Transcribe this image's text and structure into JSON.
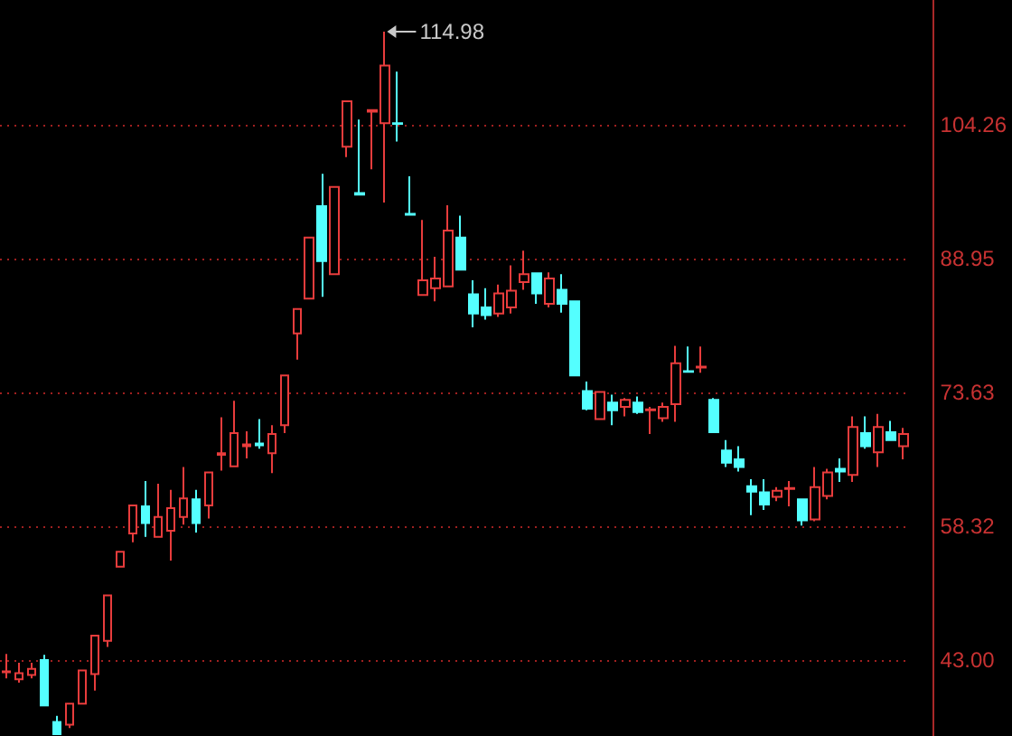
{
  "chart_data": {
    "type": "candlestick",
    "categories": [
      null,
      null,
      null,
      null,
      null,
      null,
      null,
      null,
      null,
      null,
      null,
      null,
      null,
      null,
      null,
      null,
      null,
      null,
      null,
      null,
      null,
      null,
      null,
      null,
      null,
      null,
      null,
      null,
      null,
      null,
      null,
      null,
      null,
      null,
      null,
      null,
      null,
      null,
      null,
      null,
      null,
      null,
      null,
      null,
      null,
      null,
      null,
      null,
      null,
      null,
      null,
      null,
      null,
      null,
      null,
      null,
      null,
      null,
      null,
      null,
      null,
      null,
      null,
      null,
      null,
      null,
      null,
      null,
      null,
      null,
      null,
      null
    ],
    "ohlc": [
      [
        41.6,
        43.7,
        40.9,
        41.7
      ],
      [
        40.8,
        42.7,
        40.4,
        41.5
      ],
      [
        41.3,
        42.7,
        40.9,
        42.0
      ],
      [
        43.0,
        43.6,
        37.8,
        37.8
      ],
      [
        35.9,
        36.6,
        34.4,
        34.5
      ],
      [
        35.6,
        38.0,
        35.2,
        38.0
      ],
      [
        38.0,
        41.8,
        38.0,
        41.8
      ],
      [
        41.4,
        45.8,
        39.5,
        45.8
      ],
      [
        45.2,
        50.4,
        44.5,
        50.4
      ],
      [
        53.7,
        55.4,
        53.7,
        55.4
      ],
      [
        57.5,
        60.7,
        56.5,
        60.7
      ],
      [
        60.6,
        63.5,
        57.1,
        58.7
      ],
      [
        57.1,
        63.2,
        57.1,
        59.4
      ],
      [
        57.8,
        62.5,
        54.4,
        60.4
      ],
      [
        59.4,
        65.1,
        58.5,
        61.5
      ],
      [
        61.4,
        62.5,
        57.6,
        58.7
      ],
      [
        60.7,
        64.5,
        59.2,
        64.5
      ],
      [
        66.5,
        70.8,
        64.7,
        66.7
      ],
      [
        65.2,
        72.7,
        65.1,
        69.0
      ],
      [
        67.5,
        69.2,
        66.1,
        67.7
      ],
      [
        67.8,
        70.6,
        67.2,
        67.6
      ],
      [
        66.7,
        69.9,
        64.4,
        68.9
      ],
      [
        69.9,
        75.6,
        69.0,
        75.6
      ],
      [
        80.4,
        83.2,
        77.4,
        83.2
      ],
      [
        84.4,
        91.4,
        84.3,
        91.4
      ],
      [
        95.0,
        98.7,
        84.6,
        88.7
      ],
      [
        87.2,
        97.2,
        87.2,
        97.2
      ],
      [
        101.8,
        107.0,
        100.6,
        107.0
      ],
      [
        96.5,
        104.9,
        96.3,
        96.3
      ],
      [
        105.8,
        106.1,
        99.2,
        106.0
      ],
      [
        104.5,
        114.98,
        95.4,
        111.1
      ],
      [
        104.5,
        110.4,
        102.4,
        104.4
      ],
      [
        94.1,
        98.4,
        93.9,
        94.0
      ],
      [
        84.8,
        93.4,
        84.8,
        86.5
      ],
      [
        85.6,
        89.2,
        84.1,
        86.7
      ],
      [
        85.8,
        95.1,
        85.8,
        92.2
      ],
      [
        91.4,
        93.9,
        87.7,
        87.7
      ],
      [
        84.9,
        86.5,
        81.1,
        82.7
      ],
      [
        83.4,
        85.6,
        82.0,
        82.5
      ],
      [
        82.7,
        86.0,
        82.3,
        85.0
      ],
      [
        83.4,
        88.2,
        82.7,
        85.3
      ],
      [
        86.3,
        89.9,
        85.4,
        87.2
      ],
      [
        87.3,
        87.3,
        83.8,
        85.0
      ],
      [
        83.8,
        87.4,
        83.4,
        86.7
      ],
      [
        85.4,
        87.2,
        82.8,
        83.8
      ],
      [
        84.1,
        84.1,
        75.6,
        75.6
      ],
      [
        73.8,
        74.9,
        71.6,
        71.8
      ],
      [
        70.6,
        73.7,
        70.6,
        73.7
      ],
      [
        72.5,
        73.4,
        69.9,
        71.6
      ],
      [
        72.0,
        73.0,
        70.9,
        72.8
      ],
      [
        72.5,
        73.2,
        71.2,
        71.4
      ],
      [
        71.6,
        72.0,
        68.9,
        71.7
      ],
      [
        70.7,
        72.5,
        70.3,
        72.0
      ],
      [
        72.3,
        79.0,
        70.3,
        77.0
      ],
      [
        76.1,
        78.9,
        75.9,
        76.0
      ],
      [
        76.5,
        78.9,
        75.9,
        76.6
      ],
      [
        72.8,
        73.0,
        69.1,
        69.1
      ],
      [
        67.0,
        68.2,
        65.1,
        65.6
      ],
      [
        66.0,
        67.5,
        64.6,
        65.1
      ],
      [
        62.9,
        63.7,
        59.6,
        62.3
      ],
      [
        62.2,
        63.7,
        60.2,
        60.8
      ],
      [
        61.7,
        62.8,
        61.2,
        62.4
      ],
      [
        62.6,
        63.5,
        60.6,
        62.7
      ],
      [
        61.4,
        61.4,
        58.4,
        59.0
      ],
      [
        59.1,
        65.1,
        58.9,
        62.8
      ],
      [
        61.8,
        64.9,
        61.4,
        64.5
      ],
      [
        64.9,
        66.1,
        63.4,
        64.6
      ],
      [
        64.2,
        70.9,
        63.4,
        69.7
      ],
      [
        69.0,
        70.9,
        67.2,
        67.5
      ],
      [
        66.8,
        71.2,
        65.1,
        69.7
      ],
      [
        69.1,
        70.4,
        68.2,
        68.2
      ],
      [
        67.5,
        69.6,
        66.0,
        68.9
      ]
    ],
    "colors": [
      "#e83c3c",
      "#e83c3c",
      "#e83c3c",
      "#54ffff",
      "#54ffff",
      "#e83c3c",
      "#e83c3c",
      "#e83c3c",
      "#e83c3c",
      "#e83c3c",
      "#e83c3c",
      "#54ffff",
      "#e83c3c",
      "#e83c3c",
      "#e83c3c",
      "#54ffff",
      "#e83c3c",
      "#e83c3c",
      "#e83c3c",
      "#e83c3c",
      "#54ffff",
      "#e83c3c",
      "#e83c3c",
      "#e83c3c",
      "#e83c3c",
      "#54ffff",
      "#e83c3c",
      "#e83c3c",
      "#54ffff",
      "#e83c3c",
      "#e83c3c",
      "#54ffff",
      "#54ffff",
      "#e83c3c",
      "#e83c3c",
      "#e83c3c",
      "#54ffff",
      "#54ffff",
      "#54ffff",
      "#e83c3c",
      "#e83c3c",
      "#e83c3c",
      "#54ffff",
      "#e83c3c",
      "#54ffff",
      "#54ffff",
      "#54ffff",
      "#e83c3c",
      "#54ffff",
      "#e83c3c",
      "#54ffff",
      "#e83c3c",
      "#e83c3c",
      "#e83c3c",
      "#54ffff",
      "#e83c3c",
      "#54ffff",
      "#54ffff",
      "#54ffff",
      "#54ffff",
      "#54ffff",
      "#e83c3c",
      "#e83c3c",
      "#54ffff",
      "#e83c3c",
      "#e83c3c",
      "#54ffff",
      "#e83c3c",
      "#54ffff",
      "#e83c3c",
      "#54ffff",
      "#e83c3c"
    ],
    "ylim": [
      34.3,
      118.6
    ],
    "yticks": [
      {
        "value": 43,
        "label": "43.00"
      },
      58.32,
      73.63,
      88.95,
      104.26
    ],
    "grid": "y",
    "tick_labels": "y",
    "annotations": [
      "114.98"
    ]
  }
}
